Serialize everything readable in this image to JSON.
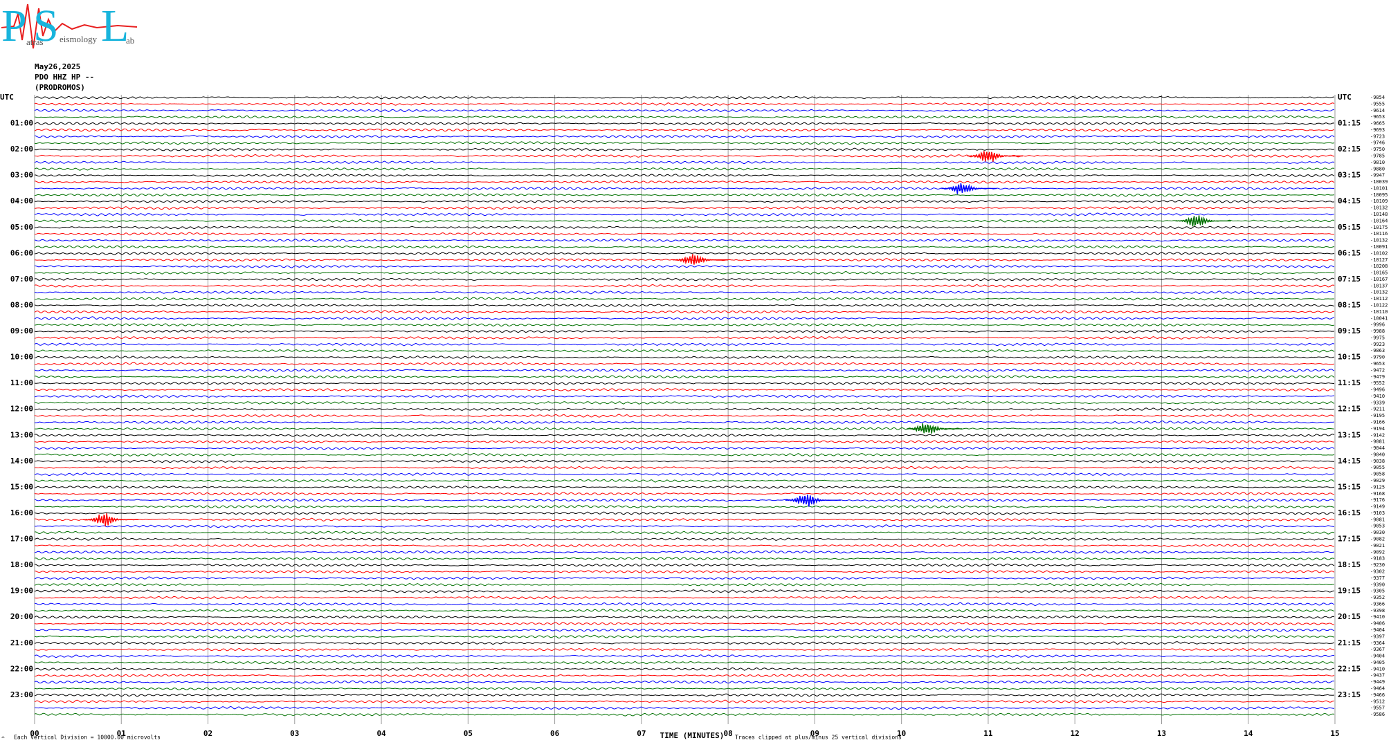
{
  "header": {
    "logo": {
      "letters": [
        "P",
        "S",
        "L"
      ],
      "small": [
        "atras",
        "eismology",
        "ab"
      ]
    },
    "date": "May26,2025",
    "station": "PDO HHZ HP --",
    "name": "(PRODROMOS)"
  },
  "axis": {
    "label": "TIME (MINUTES)",
    "xlim": [
      0,
      15
    ],
    "xticks": [
      {
        "value": 0,
        "label": "00"
      },
      {
        "value": 1,
        "label": "01"
      },
      {
        "value": 2,
        "label": "02"
      },
      {
        "value": 3,
        "label": "03"
      },
      {
        "value": 4,
        "label": "04"
      },
      {
        "value": 5,
        "label": "05"
      },
      {
        "value": 6,
        "label": "06"
      },
      {
        "value": 7,
        "label": "07"
      },
      {
        "value": 8,
        "label": "08"
      },
      {
        "value": 9,
        "label": "09"
      },
      {
        "value": 10,
        "label": "10"
      },
      {
        "value": 11,
        "label": "11"
      },
      {
        "value": 12,
        "label": "12"
      },
      {
        "value": 13,
        "label": "13"
      },
      {
        "value": 14,
        "label": "14"
      },
      {
        "value": 15,
        "label": "15"
      }
    ]
  },
  "colors": [
    "#000000",
    "#ff0000",
    "#0000ff",
    "#007000"
  ],
  "left_labels": [
    "UTC",
    "01:00",
    "02:00",
    "03:00",
    "04:00",
    "05:00",
    "06:00",
    "07:00",
    "08:00",
    "09:00",
    "10:00",
    "11:00",
    "12:00",
    "13:00",
    "14:00",
    "15:00",
    "16:00",
    "17:00",
    "18:00",
    "19:00",
    "20:00",
    "21:00",
    "22:00",
    "23:00"
  ],
  "right_labels": [
    "UTC",
    "01:15",
    "02:15",
    "03:15",
    "04:15",
    "05:15",
    "06:15",
    "07:15",
    "08:15",
    "09:15",
    "10:15",
    "11:15",
    "12:15",
    "13:15",
    "14:15",
    "15:15",
    "16:15",
    "17:15",
    "18:15",
    "19:15",
    "20:15",
    "21:15",
    "22:15",
    "23:15"
  ],
  "row_values": [
    -9854,
    -9555,
    -9614,
    -9653,
    -9665,
    -9693,
    -9723,
    -9746,
    -9750,
    -9785,
    -9810,
    -9880,
    -9947,
    -10039,
    -10101,
    -10095,
    -10109,
    -10132,
    -10148,
    -10164,
    -10175,
    -10116,
    -10132,
    -10091,
    -10102,
    -10127,
    -10208,
    -10165,
    -10167,
    -10137,
    -10132,
    -10112,
    -10122,
    -10110,
    -10041,
    -9996,
    -9988,
    -9975,
    -9923,
    -9863,
    -9790,
    -9653,
    -9472,
    -9479,
    -9552,
    -9496,
    -9410,
    -9339,
    -9211,
    -9195,
    -9166,
    -9194,
    -9142,
    -9081,
    -9044,
    -9040,
    -9038,
    -9055,
    -9058,
    -9029,
    -9125,
    -9168,
    -9176,
    -9149,
    -9103,
    -9081,
    -9053,
    -9030,
    -9082,
    -9021,
    -9092,
    -9183,
    -9230,
    -9302,
    -9377,
    -9390,
    -9305,
    -9352,
    -9366,
    -9398,
    -9410,
    -9406,
    -9404,
    -9397,
    -9364,
    -9367,
    -9404,
    -9405,
    -9410,
    -9437,
    -9449,
    -9464,
    -9466,
    -9512,
    -9557,
    -9586
  ],
  "events": [
    {
      "trace": 9,
      "minute": 11.0
    },
    {
      "trace": 14,
      "minute": 10.7
    },
    {
      "trace": 19,
      "minute": 13.4
    },
    {
      "trace": 25,
      "minute": 7.6
    },
    {
      "trace": 51,
      "minute": 10.3
    },
    {
      "trace": 62,
      "minute": 8.9
    },
    {
      "trace": 65,
      "minute": 0.8
    }
  ],
  "footer": {
    "mark": "^",
    "division": "Each Vertical Division = 10000.00 microvolts",
    "clip": "Traces clipped at plus/minus 25 vertical divisions"
  }
}
